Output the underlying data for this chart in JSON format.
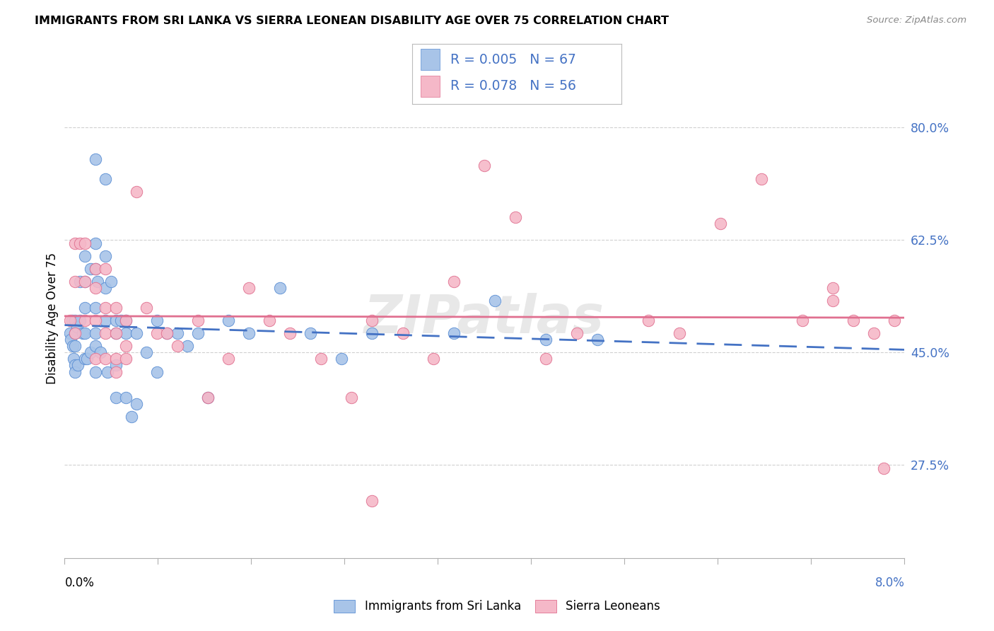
{
  "title": "IMMIGRANTS FROM SRI LANKA VS SIERRA LEONEAN DISABILITY AGE OVER 75 CORRELATION CHART",
  "source": "Source: ZipAtlas.com",
  "ylabel": "Disability Age Over 75",
  "ytick_labels": [
    "80.0%",
    "62.5%",
    "45.0%",
    "27.5%"
  ],
  "ytick_values": [
    0.8,
    0.625,
    0.45,
    0.275
  ],
  "xmin": 0.0,
  "xmax": 0.082,
  "ymin": 0.13,
  "ymax": 0.875,
  "legend_r1": "0.005",
  "legend_n1": "67",
  "legend_r2": "0.078",
  "legend_n2": "56",
  "legend_label1": "Immigrants from Sri Lanka",
  "legend_label2": "Sierra Leoneans",
  "color_blue": "#a8c4e8",
  "color_blue_edge": "#5b8fd4",
  "color_pink": "#f5b8c8",
  "color_pink_edge": "#e07090",
  "line_blue_color": "#4472c4",
  "line_pink_color": "#e07090",
  "grid_color": "#d0d0d0",
  "watermark": "ZIPatlas",
  "sri_lanka_x": [
    0.0005,
    0.0006,
    0.0007,
    0.0008,
    0.0009,
    0.001,
    0.001,
    0.001,
    0.001,
    0.001,
    0.0012,
    0.0013,
    0.0015,
    0.0015,
    0.0018,
    0.002,
    0.002,
    0.002,
    0.002,
    0.002,
    0.0022,
    0.0025,
    0.0025,
    0.003,
    0.003,
    0.003,
    0.003,
    0.003,
    0.003,
    0.003,
    0.0032,
    0.0035,
    0.004,
    0.004,
    0.004,
    0.004,
    0.0042,
    0.0045,
    0.005,
    0.005,
    0.005,
    0.005,
    0.0055,
    0.006,
    0.006,
    0.006,
    0.0065,
    0.007,
    0.007,
    0.008,
    0.009,
    0.009,
    0.01,
    0.011,
    0.012,
    0.013,
    0.014,
    0.016,
    0.018,
    0.021,
    0.024,
    0.027,
    0.03,
    0.038,
    0.042,
    0.047,
    0.052
  ],
  "sri_lanka_y": [
    0.48,
    0.47,
    0.5,
    0.46,
    0.44,
    0.5,
    0.48,
    0.46,
    0.43,
    0.42,
    0.49,
    0.43,
    0.56,
    0.5,
    0.48,
    0.6,
    0.56,
    0.52,
    0.48,
    0.44,
    0.44,
    0.58,
    0.45,
    0.75,
    0.62,
    0.58,
    0.52,
    0.48,
    0.46,
    0.42,
    0.56,
    0.45,
    0.72,
    0.6,
    0.55,
    0.5,
    0.42,
    0.56,
    0.5,
    0.48,
    0.43,
    0.38,
    0.5,
    0.5,
    0.48,
    0.38,
    0.35,
    0.48,
    0.37,
    0.45,
    0.5,
    0.42,
    0.48,
    0.48,
    0.46,
    0.48,
    0.38,
    0.5,
    0.48,
    0.55,
    0.48,
    0.44,
    0.48,
    0.48,
    0.53,
    0.47,
    0.47
  ],
  "sierra_leone_x": [
    0.0005,
    0.001,
    0.001,
    0.001,
    0.0015,
    0.002,
    0.002,
    0.002,
    0.003,
    0.003,
    0.003,
    0.003,
    0.004,
    0.004,
    0.004,
    0.004,
    0.005,
    0.005,
    0.005,
    0.005,
    0.006,
    0.006,
    0.006,
    0.007,
    0.008,
    0.009,
    0.01,
    0.011,
    0.013,
    0.014,
    0.016,
    0.018,
    0.02,
    0.022,
    0.025,
    0.028,
    0.03,
    0.033,
    0.036,
    0.038,
    0.041,
    0.044,
    0.047,
    0.05,
    0.057,
    0.06,
    0.064,
    0.068,
    0.072,
    0.075,
    0.077,
    0.079,
    0.08,
    0.081,
    0.03,
    0.075
  ],
  "sierra_leone_y": [
    0.5,
    0.62,
    0.56,
    0.48,
    0.62,
    0.62,
    0.56,
    0.5,
    0.58,
    0.55,
    0.5,
    0.44,
    0.58,
    0.52,
    0.48,
    0.44,
    0.52,
    0.48,
    0.44,
    0.42,
    0.5,
    0.46,
    0.44,
    0.7,
    0.52,
    0.48,
    0.48,
    0.46,
    0.5,
    0.38,
    0.44,
    0.55,
    0.5,
    0.48,
    0.44,
    0.38,
    0.5,
    0.48,
    0.44,
    0.56,
    0.74,
    0.66,
    0.44,
    0.48,
    0.5,
    0.48,
    0.65,
    0.72,
    0.5,
    0.55,
    0.5,
    0.48,
    0.27,
    0.5,
    0.22,
    0.53
  ]
}
